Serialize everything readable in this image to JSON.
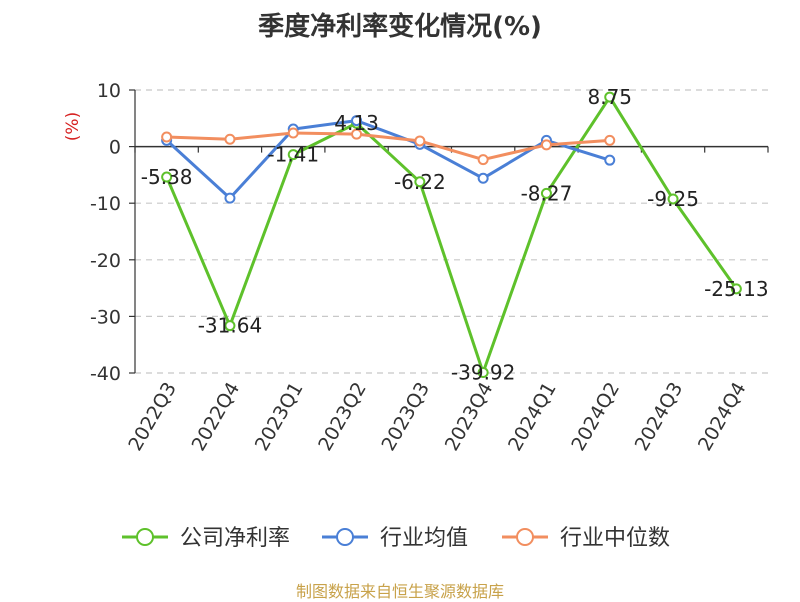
{
  "chart_data": {
    "type": "line",
    "title": "季度净利率变化情况(%)",
    "ylabel": "(%)",
    "ylim": [
      -40,
      10
    ],
    "yticks": [
      10,
      0,
      -10,
      -20,
      -30,
      -40
    ],
    "grid": true,
    "legend_position": "bottom",
    "categories": [
      "2022Q3",
      "2022Q4",
      "2023Q1",
      "2023Q2",
      "2023Q3",
      "2023Q4",
      "2024Q1",
      "2024Q2",
      "2024Q3",
      "2024Q4"
    ],
    "series": [
      {
        "name": "公司净利率",
        "color": "#5ec12b",
        "values": [
          -5.38,
          -31.64,
          -1.41,
          4.13,
          -6.22,
          -39.92,
          -8.27,
          8.75,
          -9.25,
          -25.13
        ],
        "data_labels": [
          "-5.38",
          "-31.64",
          "-1.41",
          "4.13",
          "-6.22",
          "-39.92",
          "-8.27",
          "8.75",
          "-9.25",
          "-25.13"
        ]
      },
      {
        "name": "行业均值",
        "color": "#4a7fd6",
        "values": [
          1.1,
          -9.1,
          3.1,
          4.6,
          0.4,
          -5.6,
          1.1,
          -2.4,
          null,
          null
        ]
      },
      {
        "name": "行业中位数",
        "color": "#f28e5f",
        "values": [
          1.7,
          1.3,
          2.4,
          2.2,
          1.0,
          -2.3,
          0.3,
          1.1,
          null,
          null
        ]
      }
    ]
  },
  "footer": "制图数据来自恒生聚源数据库"
}
